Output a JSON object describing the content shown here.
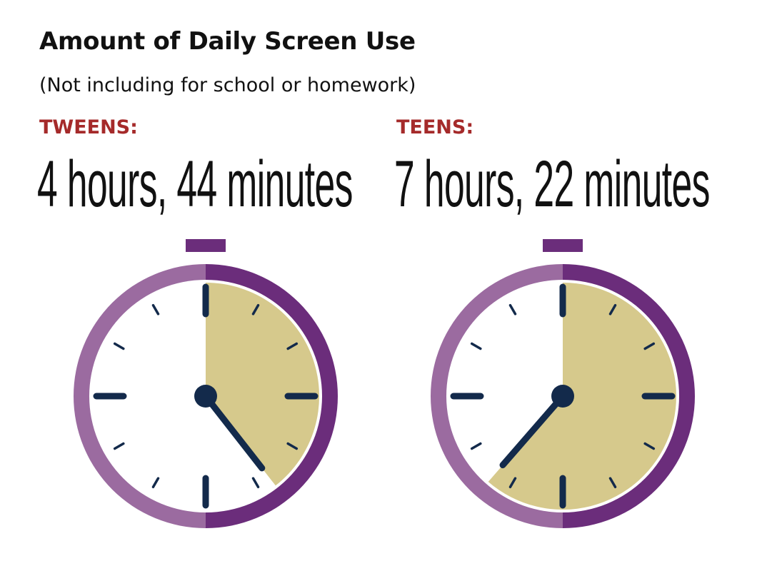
{
  "header": {
    "title": "Amount of Daily Screen Use",
    "subtitle": "(Not including for school or homework)"
  },
  "groups": [
    {
      "label": "TWEENS:",
      "duration": "4 hours, 44 minutes",
      "hours": 4,
      "minutes": 44
    },
    {
      "label": "TEENS:",
      "duration": "7 hours, 22 minutes",
      "hours": 7,
      "minutes": 22
    }
  ],
  "colors": {
    "label_red": "#a52a2a",
    "ring_light": "#9b6ba0",
    "ring_dark": "#6b2d7b",
    "fill": "#d6c98c",
    "navy": "#132a4b"
  },
  "icons": [
    "stopwatch-icon"
  ]
}
